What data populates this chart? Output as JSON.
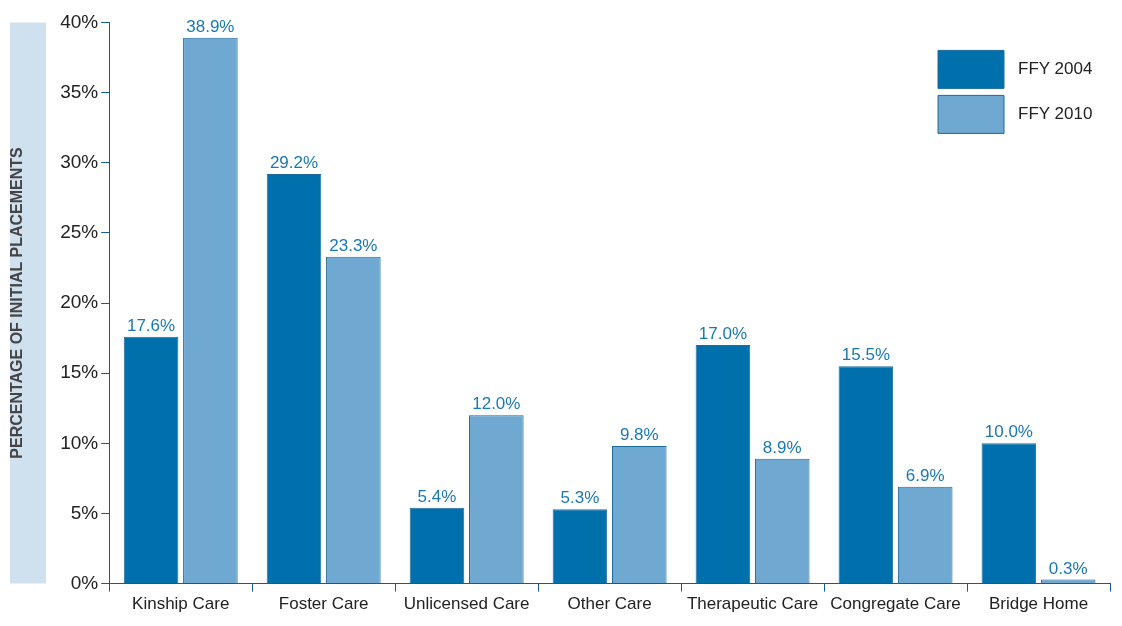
{
  "chart_data": {
    "type": "bar",
    "ylabel": "PERCENTAGE OF INITIAL PLACEMENTS",
    "categories": [
      "Kinship Care",
      "Foster Care",
      "Unlicensed Care",
      "Other Care",
      "Therapeutic Care",
      "Congregate Care",
      "Bridge Home"
    ],
    "series": [
      {
        "name": "FFY 2004",
        "color": "#0070ad",
        "values": [
          17.6,
          29.2,
          5.4,
          5.3,
          17.0,
          15.5,
          10.0
        ],
        "value_labels": [
          "17.6%",
          "29.2%",
          "5.4%",
          "5.3%",
          "17.0%",
          "15.5%",
          "10.0%"
        ]
      },
      {
        "name": "FFY 2010",
        "color": "#6fa8d0",
        "values": [
          38.9,
          23.3,
          12.0,
          9.8,
          8.9,
          6.9,
          0.3
        ],
        "value_labels": [
          "38.9%",
          "23.3%",
          "12.0%",
          "9.8%",
          "8.9%",
          "6.9%",
          "0.3%"
        ]
      }
    ],
    "ylim": [
      0,
      40
    ],
    "yticks": [
      {
        "value": 0,
        "label": "0%"
      },
      {
        "value": 5,
        "label": "5%"
      },
      {
        "value": 10,
        "label": "10%"
      },
      {
        "value": 15,
        "label": "15%"
      },
      {
        "value": 20,
        "label": "20%"
      },
      {
        "value": 25,
        "label": "25%"
      },
      {
        "value": 30,
        "label": "30%"
      },
      {
        "value": 35,
        "label": "35%"
      },
      {
        "value": 40,
        "label": "40%"
      }
    ],
    "grid": false,
    "legend": "top right"
  }
}
